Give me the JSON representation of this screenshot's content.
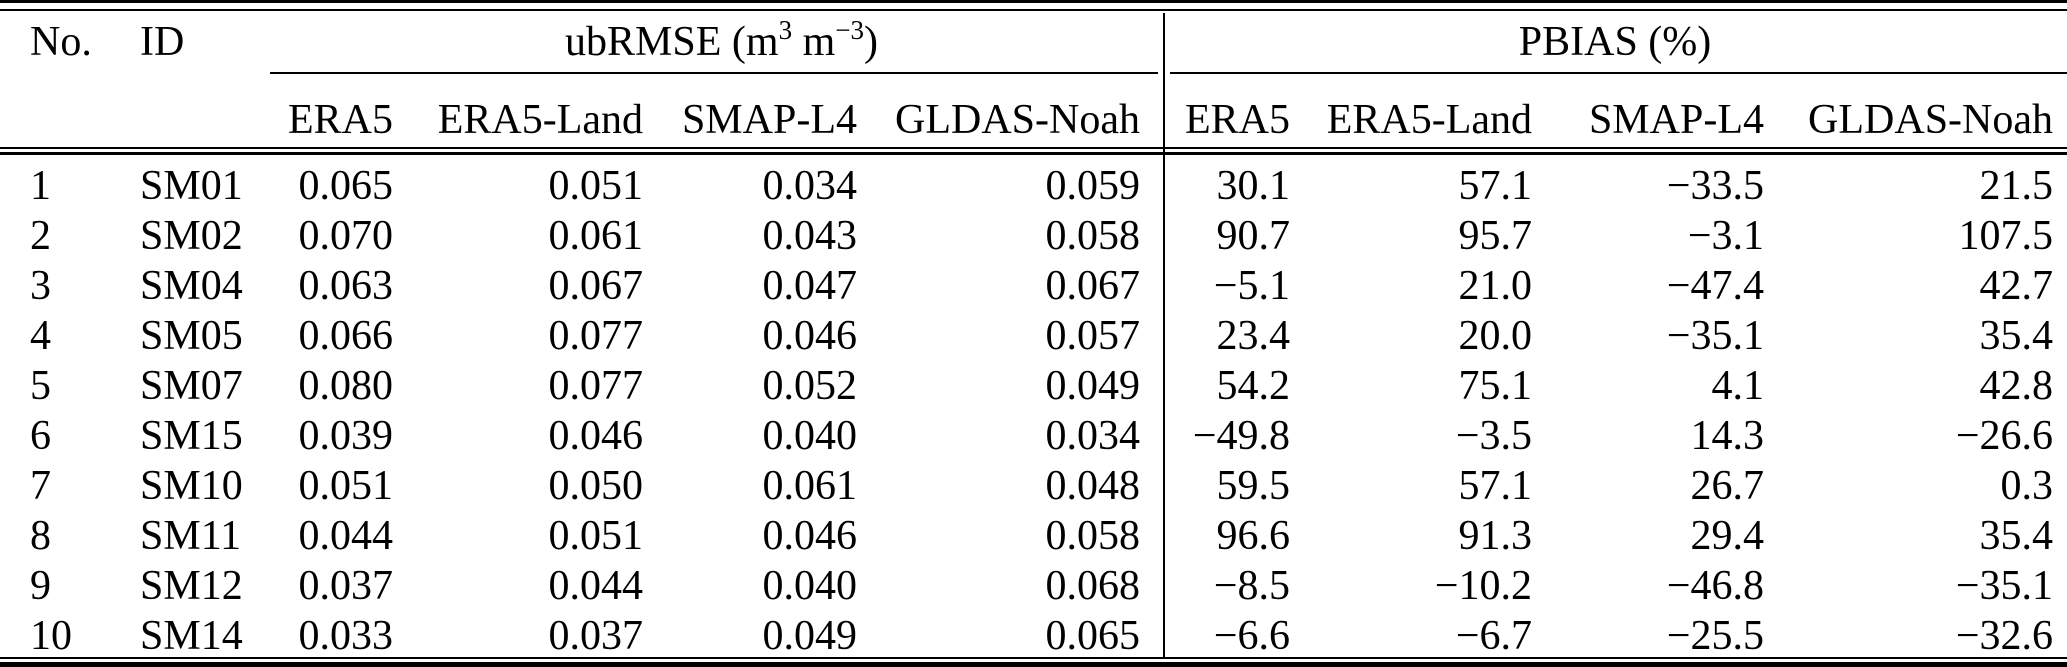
{
  "meta": {
    "background_color": "#ffffff",
    "text_color": "#000000",
    "rule_color": "#000000"
  },
  "table": {
    "header": {
      "no": "No.",
      "id": "ID",
      "group1": {
        "p1": "ubRMSE (m",
        "sup1": "3",
        "p2": " m",
        "sup2": "−3",
        "p3": ")"
      },
      "group2": "PBIAS (%)",
      "sub": [
        "ERA5",
        "ERA5-Land",
        "SMAP-L4",
        "GLDAS-Noah",
        "ERA5",
        "ERA5-Land",
        "SMAP-L4",
        "GLDAS-Noah"
      ]
    },
    "rows": [
      {
        "no": "1",
        "id": "SM01",
        "ubrmse": [
          "0.065",
          "0.051",
          "0.034",
          "0.059"
        ],
        "pbias": [
          "30.1",
          "57.1",
          "−33.5",
          "21.5"
        ]
      },
      {
        "no": "2",
        "id": "SM02",
        "ubrmse": [
          "0.070",
          "0.061",
          "0.043",
          "0.058"
        ],
        "pbias": [
          "90.7",
          "95.7",
          "−3.1",
          "107.5"
        ]
      },
      {
        "no": "3",
        "id": "SM04",
        "ubrmse": [
          "0.063",
          "0.067",
          "0.047",
          "0.067"
        ],
        "pbias": [
          "−5.1",
          "21.0",
          "−47.4",
          "42.7"
        ]
      },
      {
        "no": "4",
        "id": "SM05",
        "ubrmse": [
          "0.066",
          "0.077",
          "0.046",
          "0.057"
        ],
        "pbias": [
          "23.4",
          "20.0",
          "−35.1",
          "35.4"
        ]
      },
      {
        "no": "5",
        "id": "SM07",
        "ubrmse": [
          "0.080",
          "0.077",
          "0.052",
          "0.049"
        ],
        "pbias": [
          "54.2",
          "75.1",
          "4.1",
          "42.8"
        ]
      },
      {
        "no": "6",
        "id": "SM15",
        "ubrmse": [
          "0.039",
          "0.046",
          "0.040",
          "0.034"
        ],
        "pbias": [
          "−49.8",
          "−3.5",
          "14.3",
          "−26.6"
        ]
      },
      {
        "no": "7",
        "id": "SM10",
        "ubrmse": [
          "0.051",
          "0.050",
          "0.061",
          "0.048"
        ],
        "pbias": [
          "59.5",
          "57.1",
          "26.7",
          "0.3"
        ]
      },
      {
        "no": "8",
        "id": "SM11",
        "ubrmse": [
          "0.044",
          "0.051",
          "0.046",
          "0.058"
        ],
        "pbias": [
          "96.6",
          "91.3",
          "29.4",
          "35.4"
        ]
      },
      {
        "no": "9",
        "id": "SM12",
        "ubrmse": [
          "0.037",
          "0.044",
          "0.040",
          "0.068"
        ],
        "pbias": [
          "−8.5",
          "−10.2",
          "−46.8",
          "−35.1"
        ]
      },
      {
        "no": "10",
        "id": "SM14",
        "ubrmse": [
          "0.033",
          "0.037",
          "0.049",
          "0.065"
        ],
        "pbias": [
          "−6.6",
          "−6.7",
          "−25.5",
          "−32.6"
        ]
      }
    ]
  },
  "chart_data": {
    "type": "table",
    "title": "",
    "column_groups": [
      "ubRMSE (m3 m−3)",
      "PBIAS (%)"
    ],
    "sub_columns": [
      "ERA5",
      "ERA5-Land",
      "SMAP-L4",
      "GLDAS-Noah"
    ],
    "row_id_columns": [
      "No.",
      "ID"
    ],
    "rows": [
      {
        "no": 1,
        "id": "SM01",
        "ubrmse": [
          0.065,
          0.051,
          0.034,
          0.059
        ],
        "pbias": [
          30.1,
          57.1,
          -33.5,
          21.5
        ]
      },
      {
        "no": 2,
        "id": "SM02",
        "ubrmse": [
          0.07,
          0.061,
          0.043,
          0.058
        ],
        "pbias": [
          90.7,
          95.7,
          -3.1,
          107.5
        ]
      },
      {
        "no": 3,
        "id": "SM04",
        "ubrmse": [
          0.063,
          0.067,
          0.047,
          0.067
        ],
        "pbias": [
          -5.1,
          21.0,
          -47.4,
          42.7
        ]
      },
      {
        "no": 4,
        "id": "SM05",
        "ubrmse": [
          0.066,
          0.077,
          0.046,
          0.057
        ],
        "pbias": [
          23.4,
          20.0,
          -35.1,
          35.4
        ]
      },
      {
        "no": 5,
        "id": "SM07",
        "ubrmse": [
          0.08,
          0.077,
          0.052,
          0.049
        ],
        "pbias": [
          54.2,
          75.1,
          4.1,
          42.8
        ]
      },
      {
        "no": 6,
        "id": "SM15",
        "ubrmse": [
          0.039,
          0.046,
          0.04,
          0.034
        ],
        "pbias": [
          -49.8,
          -3.5,
          14.3,
          -26.6
        ]
      },
      {
        "no": 7,
        "id": "SM10",
        "ubrmse": [
          0.051,
          0.05,
          0.061,
          0.048
        ],
        "pbias": [
          59.5,
          57.1,
          26.7,
          0.3
        ]
      },
      {
        "no": 8,
        "id": "SM11",
        "ubrmse": [
          0.044,
          0.051,
          0.046,
          0.058
        ],
        "pbias": [
          96.6,
          91.3,
          29.4,
          35.4
        ]
      },
      {
        "no": 9,
        "id": "SM12",
        "ubrmse": [
          0.037,
          0.044,
          0.04,
          0.068
        ],
        "pbias": [
          -8.5,
          -10.2,
          -46.8,
          -35.1
        ]
      },
      {
        "no": 10,
        "id": "SM14",
        "ubrmse": [
          0.033,
          0.037,
          0.049,
          0.065
        ],
        "pbias": [
          -6.6,
          -6.7,
          -25.5,
          -32.6
        ]
      }
    ]
  }
}
